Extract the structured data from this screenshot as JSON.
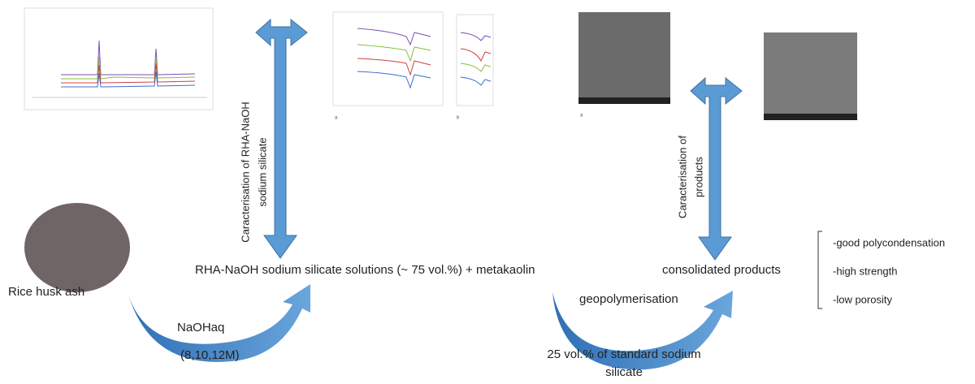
{
  "nodes": {
    "raw": {
      "label": "Rice husk ash"
    },
    "activation": {
      "reagent": "NaOHaq",
      "concentrations": "(8,10,12M)"
    },
    "solution": {
      "label": "RHA-NaOH sodium silicate solutions (~ 75 vol.%) + metakaolin"
    },
    "characterisation_solution": {
      "lines": [
        "Caracterisation of RHA-NaOH",
        "sodium silicate"
      ]
    },
    "process": {
      "label": "geopolymerisation",
      "additive": [
        "25 vol.% of standard sodium",
        "silicate"
      ]
    },
    "product": {
      "label": "consolidated products"
    },
    "characterisation_product": {
      "lines": [
        "Caracterisation of",
        "products"
      ]
    },
    "properties": [
      "-good polycondensation",
      "-high strength",
      "-low porosity"
    ]
  },
  "panels": {
    "ftir_a": "a",
    "ftir_b": "b",
    "sem_a": "a"
  }
}
